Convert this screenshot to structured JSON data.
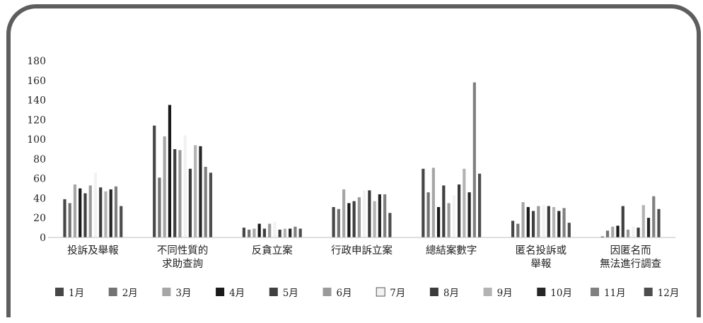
{
  "chart_data": {
    "type": "bar",
    "title": "",
    "xlabel": "",
    "ylabel": "",
    "ylim": [
      0,
      180
    ],
    "yticks": [
      0,
      20,
      40,
      60,
      80,
      100,
      120,
      140,
      160,
      180
    ],
    "grid": false,
    "legend_position": "bottom",
    "categories": [
      [
        "投訴及舉報"
      ],
      [
        "不同性質的",
        "求助查詢"
      ],
      [
        "反貪立案"
      ],
      [
        "行政申訴立案"
      ],
      [
        "總結案數字"
      ],
      [
        "匿名投訴或",
        "舉報"
      ],
      [
        "因匿名而",
        "無法進行調查"
      ]
    ],
    "series": [
      {
        "name": "1月",
        "color": "#474747",
        "values": [
          39,
          114,
          10,
          31,
          70,
          17,
          1
        ]
      },
      {
        "name": "2月",
        "color": "#737373",
        "values": [
          35,
          61,
          8,
          29,
          46,
          14,
          7
        ]
      },
      {
        "name": "3月",
        "color": "#a6a6a6",
        "values": [
          54,
          103,
          9,
          49,
          71,
          36,
          11
        ]
      },
      {
        "name": "4月",
        "color": "#1a1a1a",
        "values": [
          50,
          135,
          14,
          35,
          31,
          31,
          12
        ]
      },
      {
        "name": "5月",
        "color": "#404040",
        "values": [
          45,
          90,
          9,
          37,
          53,
          27,
          32
        ]
      },
      {
        "name": "6月",
        "color": "#9a9a9a",
        "values": [
          53,
          89,
          14,
          41,
          35,
          32,
          8
        ]
      },
      {
        "name": "7月",
        "color": "#f2f2f2",
        "values": [
          66,
          104,
          16,
          48,
          43,
          33,
          11
        ]
      },
      {
        "name": "8月",
        "color": "#3b3b3b",
        "values": [
          51,
          70,
          8,
          48,
          54,
          32,
          10
        ]
      },
      {
        "name": "9月",
        "color": "#b3b3b3",
        "values": [
          47,
          94,
          9,
          37,
          70,
          31,
          33
        ]
      },
      {
        "name": "10月",
        "color": "#262626",
        "values": [
          49,
          93,
          9,
          44,
          46,
          27,
          20
        ]
      },
      {
        "name": "11月",
        "color": "#808080",
        "values": [
          52,
          72,
          11,
          44,
          158,
          30,
          42
        ]
      },
      {
        "name": "12月",
        "color": "#4d4d4d",
        "values": [
          32,
          66,
          9,
          25,
          65,
          15,
          29
        ]
      }
    ]
  }
}
